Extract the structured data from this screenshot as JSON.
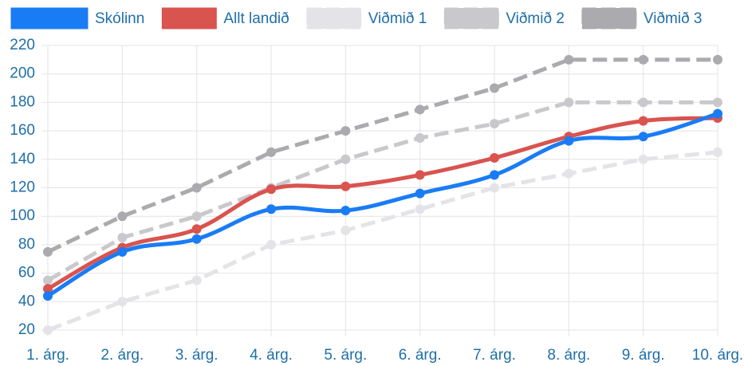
{
  "chart_data": {
    "type": "line",
    "categories": [
      "1. árg.",
      "2. árg.",
      "3. árg.",
      "4. árg.",
      "5. árg.",
      "6. árg.",
      "7. árg.",
      "8. árg.",
      "9. árg.",
      "10. árg."
    ],
    "series": [
      {
        "name": "Skólinn",
        "color": "#1a7cf5",
        "dashed": false,
        "values": [
          44,
          75,
          84,
          105,
          104,
          116,
          129,
          153,
          156,
          172
        ]
      },
      {
        "name": "Allt landið",
        "color": "#d9534f",
        "dashed": false,
        "values": [
          49,
          78,
          91,
          119,
          121,
          129,
          141,
          156,
          167,
          169
        ]
      },
      {
        "name": "Viðmið 1",
        "color": "#e4e4e8",
        "dashed": true,
        "values": [
          20,
          40,
          55,
          80,
          90,
          105,
          120,
          130,
          140,
          145
        ]
      },
      {
        "name": "Viðmið 2",
        "color": "#c9c9cd",
        "dashed": true,
        "values": [
          55,
          85,
          100,
          120,
          140,
          155,
          165,
          180,
          180,
          180
        ]
      },
      {
        "name": "Viðmið 3",
        "color": "#aaaaaf",
        "dashed": true,
        "values": [
          75,
          100,
          120,
          145,
          160,
          175,
          190,
          210,
          210,
          210
        ]
      }
    ],
    "ylim": [
      20,
      220
    ],
    "yticks": [
      20,
      40,
      60,
      80,
      100,
      120,
      140,
      160,
      180,
      200,
      220
    ],
    "grid": true
  }
}
